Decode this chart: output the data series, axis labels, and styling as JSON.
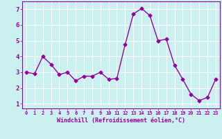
{
  "x": [
    0,
    1,
    2,
    3,
    4,
    5,
    6,
    7,
    8,
    9,
    10,
    11,
    12,
    13,
    14,
    15,
    16,
    17,
    18,
    19,
    20,
    21,
    22,
    23
  ],
  "y": [
    3.0,
    2.9,
    4.0,
    3.5,
    2.85,
    3.0,
    2.45,
    2.75,
    2.75,
    3.0,
    2.55,
    2.6,
    4.75,
    6.7,
    7.05,
    6.6,
    5.0,
    5.1,
    3.45,
    2.55,
    1.6,
    1.2,
    1.4,
    2.55
  ],
  "line_color": "#990099",
  "marker": "D",
  "marker_size": 2.5,
  "linewidth": 1.0,
  "xlabel": "Windchill (Refroidissement éolien,°C)",
  "xlim": [
    -0.5,
    23.5
  ],
  "ylim": [
    0.7,
    7.5
  ],
  "yticks": [
    1,
    2,
    3,
    4,
    5,
    6,
    7
  ],
  "xticks": [
    0,
    1,
    2,
    3,
    4,
    5,
    6,
    7,
    8,
    9,
    10,
    11,
    12,
    13,
    14,
    15,
    16,
    17,
    18,
    19,
    20,
    21,
    22,
    23
  ],
  "bg_color": "#caf0f0",
  "grid_color": "#ffffff",
  "tick_color": "#990099",
  "label_color": "#990099",
  "axis_color": "#990099",
  "xlabel_fontsize": 6.0,
  "tick_fontsize_x": 5.0,
  "tick_fontsize_y": 6.5
}
